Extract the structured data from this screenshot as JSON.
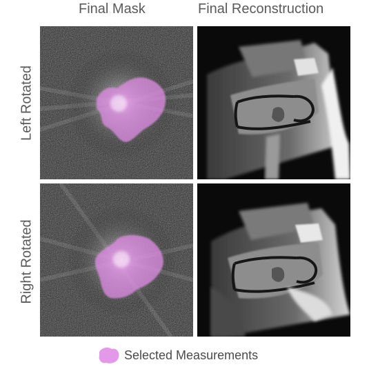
{
  "figure": {
    "columns": [
      "Final Mask",
      "Final Reconstruction"
    ],
    "rows": [
      "Left Rotated",
      "Right Rotated"
    ],
    "legend": {
      "label": "Selected Measurements",
      "color": "#e08ee6"
    },
    "panel_types": [
      "k-space mask overlay",
      "MRI knee reconstruction"
    ]
  }
}
